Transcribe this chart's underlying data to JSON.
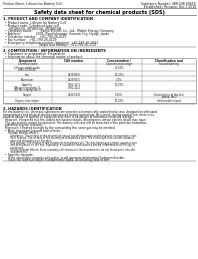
{
  "bg_color": "#ffffff",
  "page_color": "#f8f8f5",
  "header_left": "Product Name: Lithium Ion Battery Cell",
  "header_right_line1": "Substance Number: SBR-048-00618",
  "header_right_line2": "Established / Revision: Dec.7,2010",
  "main_title": "Safety data sheet for chemical products (SDS)",
  "section1_title": "1. PRODUCT AND COMPANY IDENTIFICATION",
  "s1_lines": [
    "  • Product name: Lithium Ion Battery Cell",
    "  • Product code: Cylindrical-type cell",
    "      UR18650U, UR18650U, UR18650A",
    "  • Company name:        Sanyo Electric Co., Ltd., Mobile Energy Company",
    "  • Address:               2001, Kamifukunaga, Sumoto City, Hyogo, Japan",
    "  • Telephone number:   +81-799-26-4111",
    "  • Fax number:   +81-799-26-4129",
    "  • Emergency telephone number (daytime): +81-799-26-2662",
    "                                    (Night and holiday): +81-799-26-2131"
  ],
  "section2_title": "2. COMPOSITION / INFORMATION ON INGREDIENTS",
  "s2_intro": "  • Substance or preparation: Preparation",
  "s2_sub": "  • Information about the chemical nature of product:",
  "table_rows": [
    [
      "Lithium cobalt oxide\n(LiMn-Co-PbO4)",
      "-",
      "30-50%",
      ""
    ],
    [
      "Iron",
      "7439-89-6",
      "10-20%",
      "-"
    ],
    [
      "Aluminum",
      "7429-90-5",
      "2-5%",
      "-"
    ],
    [
      "Graphite\n(Metal in graphite-1)\n(All-Me-in graphite-1)",
      "7782-42-5\n7782-44-2",
      "10-20%",
      ""
    ],
    [
      "Copper",
      "7440-50-8",
      "5-10%",
      "Sensitization of the skin\ngroup: No.2"
    ],
    [
      "Organic electrolyte",
      "-",
      "10-20%",
      "Inflammable liquid"
    ]
  ],
  "section3_title": "3. HAZARDS IDENTIFICATION",
  "s3_para1_lines": [
    "For the battery cell, chemical substances are stored in a hermetically sealed metal case, designed to withstand",
    "temperatures and physical-shocks experienced during normal use. As a result, during normal use, there is no",
    "physical danger of ignition or explosion and there is no danger of hazardous materials leakage."
  ],
  "s3_para2_lines": [
    "However, if exposed to a fire, added mechanical shocks, decomposes, whose electric shock may issue.",
    "The gas toxicity cannot be operated. The battery cell case will be breached of the particles, hazardous",
    "materials may be released.",
    "Moreover, if heated strongly by the surrounding fire, some gas may be emitted."
  ],
  "s3_bullet1": "  • Most important hazard and effects:",
  "s3_human": "      Human health effects:",
  "s3_human_lines": [
    "          Inhalation: The release of the electrolyte has an anesthesia action and stimulates in respiratory tract.",
    "          Skin contact: The release of the electrolyte stimulates a skin. The electrolyte skin contact causes a",
    "          sore and stimulation on the skin.",
    "          Eye contact: The release of the electrolyte stimulates eyes. The electrolyte eye contact causes a sore",
    "          and stimulation on the eye. Especially, a substance that causes a strong inflammation of the eye is",
    "          contained.",
    "          Environmental effects: Since a battery cell remains in the environment, do not throw out it into the",
    "          environment."
  ],
  "s3_specific": "  • Specific hazards:",
  "s3_specific_lines": [
    "      If the electrolyte contacts with water, it will generate detrimental hydrogen fluoride.",
    "      Since the lead electrolyte is inflammable liquid, do not bring close to fire."
  ],
  "text_color": "#111111",
  "table_border_color": "#777777",
  "divider_color": "#444444",
  "title_color": "#000000"
}
